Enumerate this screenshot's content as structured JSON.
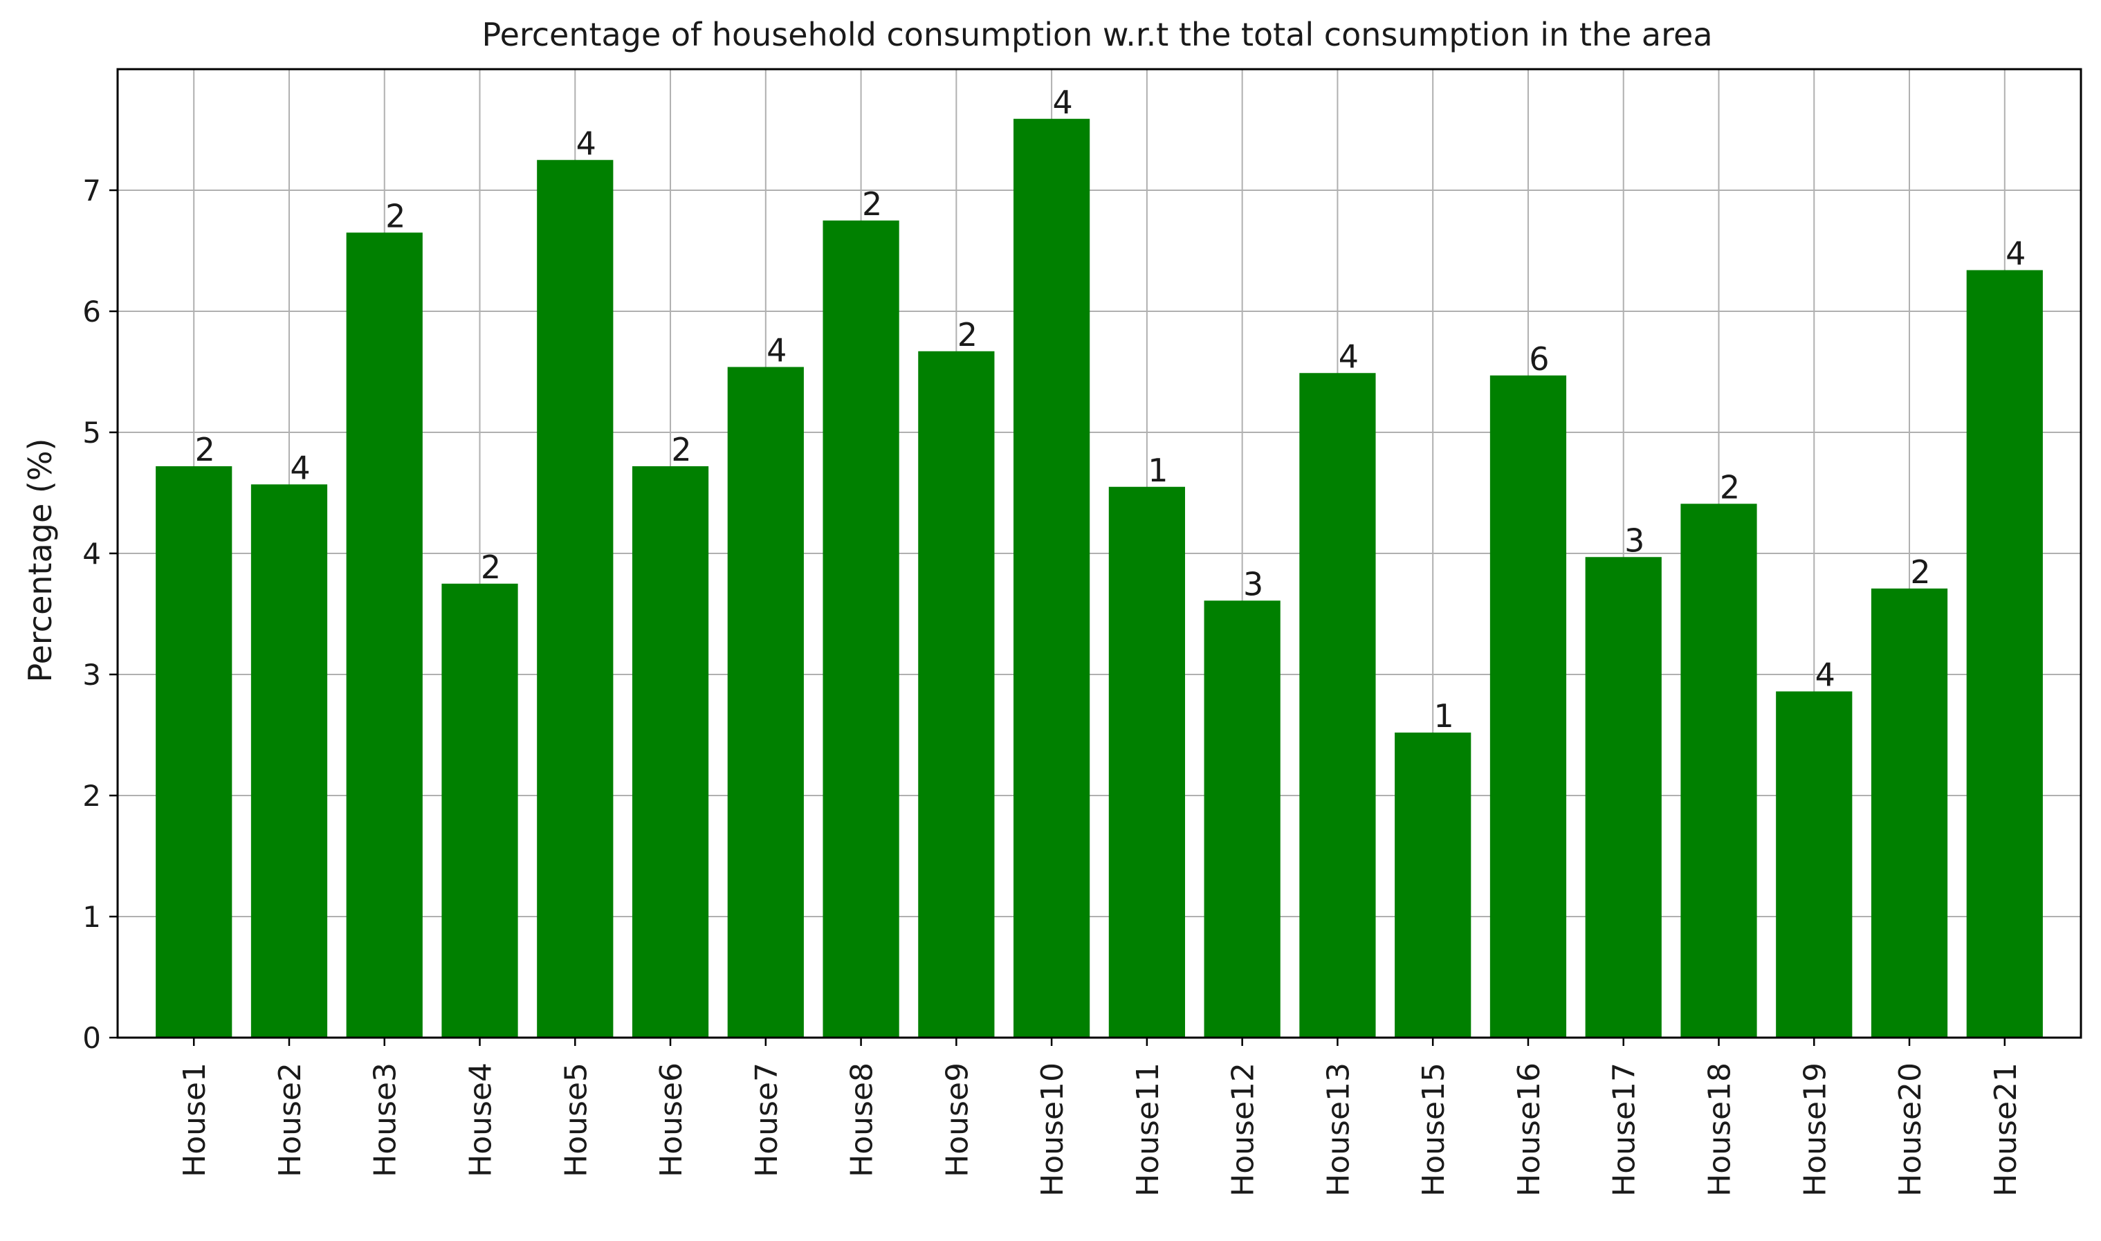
{
  "chart_data": {
    "type": "bar",
    "title": "Percentage of household consumption w.r.t the total consumption in the area",
    "xlabel": "",
    "ylabel": "Percentage (%)",
    "ylim": [
      0,
      8
    ],
    "yticks": [
      "0",
      "1",
      "2",
      "3",
      "4",
      "5",
      "6",
      "7"
    ],
    "grid": true,
    "bar_color": "#008000",
    "categories": [
      "House1",
      "House2",
      "House3",
      "House4",
      "House5",
      "House6",
      "House7",
      "House8",
      "House9",
      "House10",
      "House11",
      "House12",
      "House13",
      "House15",
      "House16",
      "House17",
      "House18",
      "House19",
      "House20",
      "House21"
    ],
    "values": [
      4.72,
      4.57,
      6.65,
      3.75,
      7.25,
      4.72,
      5.54,
      6.75,
      5.67,
      7.59,
      4.55,
      3.61,
      5.49,
      2.52,
      5.47,
      3.97,
      4.41,
      2.86,
      3.71,
      6.34
    ],
    "bar_labels": [
      "2",
      "4",
      "2",
      "2",
      "4",
      "2",
      "4",
      "2",
      "2",
      "4",
      "1",
      "3",
      "4",
      "1",
      "6",
      "3",
      "2",
      "4",
      "2",
      "4"
    ]
  }
}
